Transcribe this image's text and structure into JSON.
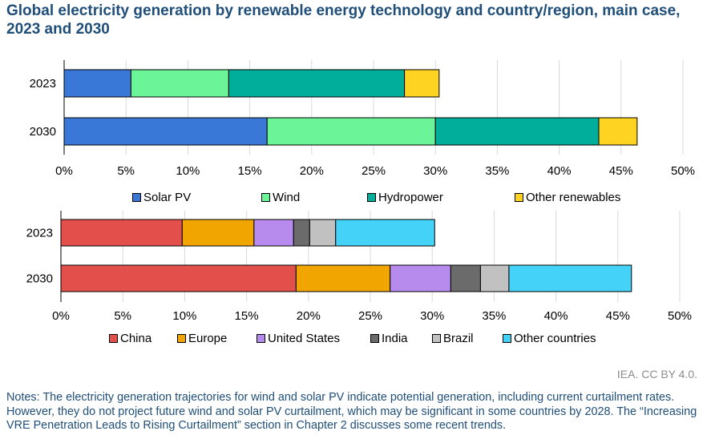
{
  "title": "Global electricity generation by renewable energy technology and country/region, main case, 2023 and 2030",
  "credit": "IEA. CC BY 4.0.",
  "notes": "Notes: The electricity generation trajectories for wind and solar PV indicate potential generation, including current curtailment rates. However, they do not project future wind and solar PV curtailment, which may be significant in some countries by 2028. The “Increasing VRE Penetration Leads to Rising Curtailment” section in Chapter 2 discusses some recent trends.",
  "chart_data": [
    {
      "type": "bar",
      "orientation": "horizontal",
      "stacked": true,
      "categories": [
        "2023",
        "2030"
      ],
      "xlim": [
        0,
        50
      ],
      "ticks": [
        "0%",
        "5%",
        "10%",
        "15%",
        "20%",
        "25%",
        "30%",
        "35%",
        "40%",
        "45%",
        "50%"
      ],
      "grid": true,
      "legend_position": "bottom",
      "series": [
        {
          "name": "Solar PV",
          "color": "#3a78d8",
          "values": [
            5.4,
            16.4
          ]
        },
        {
          "name": "Wind",
          "color": "#6cf598",
          "values": [
            7.9,
            13.6
          ]
        },
        {
          "name": "Hydropower",
          "color": "#00ae9b",
          "values": [
            14.2,
            13.2
          ]
        },
        {
          "name": "Other renewables",
          "color": "#ffd321",
          "values": [
            2.8,
            3.1
          ]
        }
      ]
    },
    {
      "type": "bar",
      "orientation": "horizontal",
      "stacked": true,
      "categories": [
        "2023",
        "2030"
      ],
      "xlim": [
        0,
        50
      ],
      "ticks": [
        "0%",
        "5%",
        "10%",
        "15%",
        "20%",
        "25%",
        "30%",
        "35%",
        "40%",
        "45%",
        "50%"
      ],
      "grid": true,
      "legend_position": "bottom",
      "series": [
        {
          "name": "China",
          "color": "#e34f4a",
          "values": [
            9.8,
            19.0
          ]
        },
        {
          "name": "Europe",
          "color": "#f0a500",
          "values": [
            5.8,
            7.6
          ]
        },
        {
          "name": "United States",
          "color": "#b78aed",
          "values": [
            3.2,
            4.9
          ]
        },
        {
          "name": "India",
          "color": "#6b6b6b",
          "values": [
            1.3,
            2.4
          ]
        },
        {
          "name": "Brazil",
          "color": "#c1c1c1",
          "values": [
            2.1,
            2.3
          ]
        },
        {
          "name": "Other countries",
          "color": "#45d2f8",
          "values": [
            8.0,
            9.9
          ]
        }
      ]
    }
  ]
}
